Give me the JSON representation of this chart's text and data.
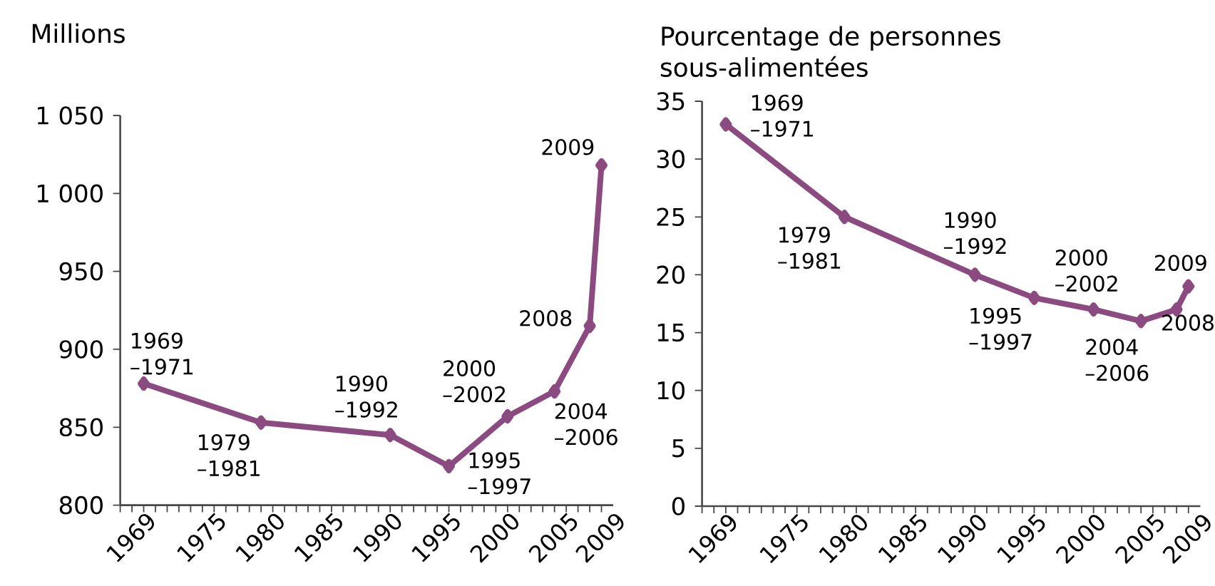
{
  "chart_data": [
    {
      "type": "line",
      "ylabel": "Millions",
      "x": [
        1970,
        1980,
        1991,
        1996,
        2001,
        2005,
        2008,
        2009
      ],
      "values": [
        878,
        853,
        845,
        825,
        857,
        873,
        915,
        1018
      ],
      "color": "#8b4a80",
      "marker": "diamond",
      "xlim": [
        1968,
        2010
      ],
      "ylim": [
        800,
        1050
      ],
      "xticks": [
        {
          "value": 1968,
          "label": null
        },
        1969,
        {
          "value": 1970,
          "label": null
        },
        {
          "value": 1971,
          "label": null
        },
        {
          "value": 1972,
          "label": null
        },
        {
          "value": 1973,
          "label": null
        },
        {
          "value": 1974,
          "label": null
        },
        1975,
        {
          "value": 1976,
          "label": null
        },
        {
          "value": 1977,
          "label": null
        },
        {
          "value": 1978,
          "label": null
        },
        {
          "value": 1979,
          "label": null
        },
        1980,
        {
          "value": 1981,
          "label": null
        },
        {
          "value": 1982,
          "label": null
        },
        {
          "value": 1983,
          "label": null
        },
        {
          "value": 1984,
          "label": null
        },
        1985,
        {
          "value": 1986,
          "label": null
        },
        {
          "value": 1987,
          "label": null
        },
        {
          "value": 1988,
          "label": null
        },
        {
          "value": 1989,
          "label": null
        },
        1990,
        {
          "value": 1991,
          "label": null
        },
        {
          "value": 1992,
          "label": null
        },
        {
          "value": 1993,
          "label": null
        },
        {
          "value": 1994,
          "label": null
        },
        1995,
        {
          "value": 1996,
          "label": null
        },
        {
          "value": 1997,
          "label": null
        },
        {
          "value": 1998,
          "label": null
        },
        {
          "value": 1999,
          "label": null
        },
        2000,
        {
          "value": 2001,
          "label": null
        },
        {
          "value": 2002,
          "label": null
        },
        {
          "value": 2003,
          "label": null
        },
        {
          "value": 2004,
          "label": null
        },
        2005,
        {
          "value": 2006,
          "label": null
        },
        {
          "value": 2007,
          "label": null
        },
        {
          "value": 2008,
          "label": null
        },
        2009
      ],
      "yticks": [
        800,
        850,
        900,
        950,
        {
          "value": 1000,
          "label": "1 000"
        },
        {
          "value": 1050,
          "label": "1 050"
        }
      ],
      "annotations": [
        {
          "text": "1969 –1971",
          "x": 1970,
          "y": 878
        },
        {
          "text": "1979 –1981",
          "x": 1980,
          "y": 853
        },
        {
          "text": "1990 –1992",
          "x": 1991,
          "y": 845
        },
        {
          "text": "1995 –1997",
          "x": 1996,
          "y": 825
        },
        {
          "text": "2000 –2002",
          "x": 2001,
          "y": 857
        },
        {
          "text": "2004 –2006",
          "x": 2005,
          "y": 873
        },
        {
          "text": "2008",
          "x": 2008,
          "y": 915
        },
        {
          "text": "2009",
          "x": 2009,
          "y": 1018
        }
      ]
    },
    {
      "type": "line",
      "ylabel": "Pourcentage de personnes sous-alimentées",
      "x": [
        1970,
        1980,
        1991,
        1996,
        2001,
        2005,
        2008,
        2009
      ],
      "values": [
        33,
        25,
        20,
        18,
        17,
        16,
        17,
        19
      ],
      "color": "#8b4a80",
      "marker": "diamond",
      "xlim": [
        1968,
        2010
      ],
      "ylim": [
        0,
        35
      ],
      "xticks": [
        {
          "value": 1968,
          "label": null
        },
        1969,
        {
          "value": 1970,
          "label": null
        },
        {
          "value": 1971,
          "label": null
        },
        {
          "value": 1972,
          "label": null
        },
        {
          "value": 1973,
          "label": null
        },
        {
          "value": 1974,
          "label": null
        },
        1975,
        {
          "value": 1976,
          "label": null
        },
        {
          "value": 1977,
          "label": null
        },
        {
          "value": 1978,
          "label": null
        },
        {
          "value": 1979,
          "label": null
        },
        1980,
        {
          "value": 1981,
          "label": null
        },
        {
          "value": 1982,
          "label": null
        },
        {
          "value": 1983,
          "label": null
        },
        {
          "value": 1984,
          "label": null
        },
        1985,
        {
          "value": 1986,
          "label": null
        },
        {
          "value": 1987,
          "label": null
        },
        {
          "value": 1988,
          "label": null
        },
        {
          "value": 1989,
          "label": null
        },
        1990,
        {
          "value": 1991,
          "label": null
        },
        {
          "value": 1992,
          "label": null
        },
        {
          "value": 1993,
          "label": null
        },
        {
          "value": 1994,
          "label": null
        },
        1995,
        {
          "value": 1996,
          "label": null
        },
        {
          "value": 1997,
          "label": null
        },
        {
          "value": 1998,
          "label": null
        },
        {
          "value": 1999,
          "label": null
        },
        2000,
        {
          "value": 2001,
          "label": null
        },
        {
          "value": 2002,
          "label": null
        },
        {
          "value": 2003,
          "label": null
        },
        {
          "value": 2004,
          "label": null
        },
        2005,
        {
          "value": 2006,
          "label": null
        },
        {
          "value": 2007,
          "label": null
        },
        {
          "value": 2008,
          "label": null
        },
        2009
      ],
      "yticks": [
        0,
        5,
        10,
        15,
        20,
        25,
        30,
        35
      ],
      "annotations": [
        {
          "text": "1969 –1971",
          "x": 1970,
          "y": 33
        },
        {
          "text": "1979 –1981",
          "x": 1980,
          "y": 25
        },
        {
          "text": "1990 –1992",
          "x": 1991,
          "y": 20
        },
        {
          "text": "1995 –1997",
          "x": 1996,
          "y": 18
        },
        {
          "text": "2000 –2002",
          "x": 2001,
          "y": 17
        },
        {
          "text": "2004 –2006",
          "x": 2005,
          "y": 16
        },
        {
          "text": "2008",
          "x": 2008,
          "y": 17
        },
        {
          "text": "2009",
          "x": 2009,
          "y": 19
        }
      ]
    }
  ]
}
